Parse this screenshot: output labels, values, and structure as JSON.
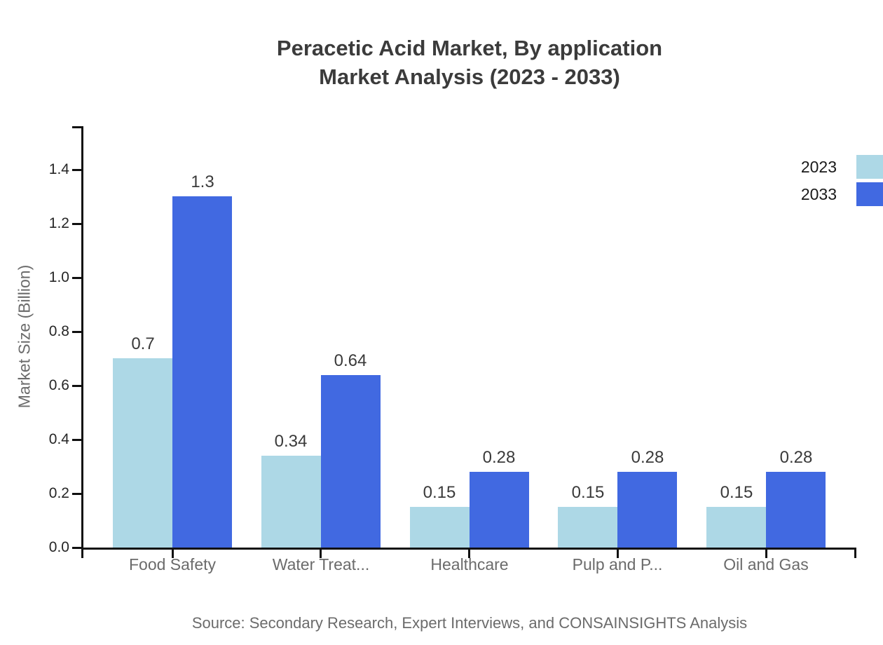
{
  "title": {
    "line1": "Peracetic Acid Market, By application",
    "line2": "Market Analysis (2023 - 2033)"
  },
  "source_note": "Source: Secondary Research, Expert Interviews, and CONSAINSIGHTS Analysis",
  "chart_data": {
    "type": "bar",
    "title": "Peracetic Acid Market, By application Market Analysis (2023 - 2033)",
    "categories": [
      "Food Safety",
      "Water Treat...",
      "Healthcare",
      "Pulp and P...",
      "Oil and Gas"
    ],
    "series": [
      {
        "name": "2023",
        "color": "#ADD8E6",
        "values": [
          0.7,
          0.34,
          0.15,
          0.15,
          0.15
        ]
      },
      {
        "name": "2033",
        "color": "#4169E1",
        "values": [
          1.3,
          0.64,
          0.28,
          0.28,
          0.28
        ]
      }
    ],
    "xlabel": "",
    "ylabel": "Market Size (Billion)",
    "yticks": [
      0.0,
      0.2,
      0.4,
      0.6,
      0.8,
      1.0,
      1.2,
      1.4
    ],
    "ylim": [
      0,
      1.56
    ],
    "bar_value_labels": true,
    "grid": false,
    "legend": {
      "position": "top-right",
      "entries": [
        "2023",
        "2033"
      ]
    }
  }
}
